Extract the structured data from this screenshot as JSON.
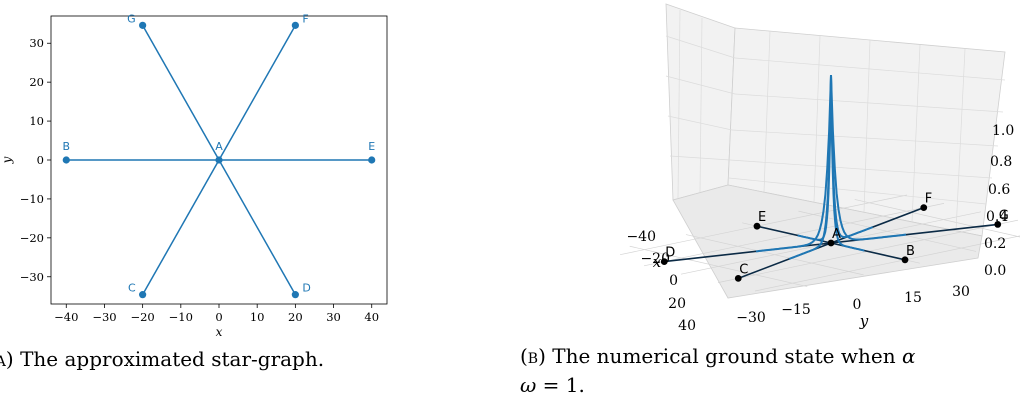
{
  "chart_data": [
    {
      "type": "scatter",
      "panel": "A",
      "xlabel": "x",
      "ylabel": "y",
      "xlim": [
        -44,
        44
      ],
      "ylim": [
        -37,
        37
      ],
      "xticks": [
        "−40",
        "−30",
        "−20",
        "−10",
        "0",
        "10",
        "20",
        "30",
        "40"
      ],
      "xtick_values": [
        -40,
        -30,
        -20,
        -10,
        0,
        10,
        20,
        30,
        40
      ],
      "yticks": [
        "−30",
        "−20",
        "−10",
        "0",
        "10",
        "20",
        "30"
      ],
      "ytick_values": [
        -30,
        -20,
        -10,
        0,
        10,
        20,
        30
      ],
      "grid": false,
      "nodes": [
        {
          "label": "A",
          "x": 0,
          "y": 0,
          "label_pos": "above"
        },
        {
          "label": "B",
          "x": -40,
          "y": 0,
          "label_pos": "above"
        },
        {
          "label": "C",
          "x": -20,
          "y": -34.6,
          "label_pos": "left"
        },
        {
          "label": "D",
          "x": 20,
          "y": -34.6,
          "label_pos": "right"
        },
        {
          "label": "E",
          "x": 40,
          "y": 0,
          "label_pos": "above"
        },
        {
          "label": "F",
          "x": 20,
          "y": 34.6,
          "label_pos": "right"
        },
        {
          "label": "G",
          "x": -20,
          "y": 34.6,
          "label_pos": "left"
        }
      ],
      "edges": [
        [
          "A",
          "B"
        ],
        [
          "A",
          "C"
        ],
        [
          "A",
          "D"
        ],
        [
          "A",
          "E"
        ],
        [
          "A",
          "F"
        ],
        [
          "A",
          "G"
        ]
      ],
      "color": "#1f77b4"
    },
    {
      "type": "line",
      "panel": "B",
      "projection": "3d",
      "xlabel": "x",
      "ylabel": "y",
      "zlabel": "",
      "xticks": [
        "−40",
        "−20",
        "0",
        "20",
        "40"
      ],
      "xtick_values": [
        -40,
        -20,
        0,
        20,
        40
      ],
      "yticks": [
        "−30",
        "−15",
        "0",
        "15",
        "30"
      ],
      "ytick_values": [
        -30,
        -15,
        0,
        15,
        30
      ],
      "zticks": [
        "0.0",
        "0.2",
        "0.4",
        "0.6",
        "0.8",
        "1.0"
      ],
      "ztick_values": [
        0,
        0.2,
        0.4,
        0.6,
        0.8,
        1.0
      ],
      "grid": true,
      "nodes": [
        {
          "label": "A",
          "x": 0,
          "y": 0
        },
        {
          "label": "B",
          "x": -40,
          "y": 0
        },
        {
          "label": "C",
          "x": -20,
          "y": -34.6
        },
        {
          "label": "D",
          "x": 20,
          "y": -34.6
        },
        {
          "label": "E",
          "x": 40,
          "y": 0
        },
        {
          "label": "F",
          "x": 20,
          "y": 34.6
        },
        {
          "label": "G",
          "x": -20,
          "y": 34.6
        }
      ],
      "edges": [
        [
          "A",
          "B"
        ],
        [
          "A",
          "C"
        ],
        [
          "A",
          "D"
        ],
        [
          "A",
          "E"
        ],
        [
          "A",
          "F"
        ],
        [
          "A",
          "G"
        ]
      ],
      "peak_height": 1.0,
      "edge_color": "#0b2a45",
      "surface_color": "#1f77b4"
    }
  ],
  "captions": {
    "a_label": "(a)",
    "a_text": "The approximated star-graph.",
    "b_label": "(b)",
    "b_text": "The numerical ground state when",
    "b_alpha": "α",
    "b_line2_omega": "ω",
    "b_line2_rest": " = 1."
  }
}
